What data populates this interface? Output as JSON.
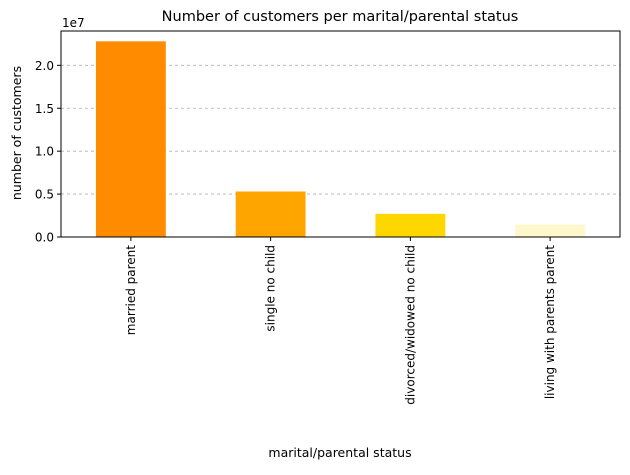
{
  "chart_data": {
    "type": "bar",
    "title": "Number of customers per marital/parental status",
    "xlabel": "marital/parental status",
    "ylabel": "number of customers",
    "y_offset_label": "1e7",
    "y_scale": 10000000,
    "categories": [
      "married parent",
      "single no child",
      "divorced/widowed no child",
      "living with parents parent"
    ],
    "values": [
      22800000,
      5300000,
      2700000,
      1450000
    ],
    "colors": [
      "#ff8c00",
      "#ffa500",
      "#ffd700",
      "#fff8cc"
    ],
    "ylim": [
      0,
      24000000
    ],
    "yticks": [
      0,
      5000000,
      10000000,
      15000000,
      20000000
    ],
    "ytick_labels": [
      "0.0",
      "0.5",
      "1.0",
      "1.5",
      "2.0"
    ],
    "grid": "y-dashed",
    "x_tick_rotation": "vertical"
  }
}
